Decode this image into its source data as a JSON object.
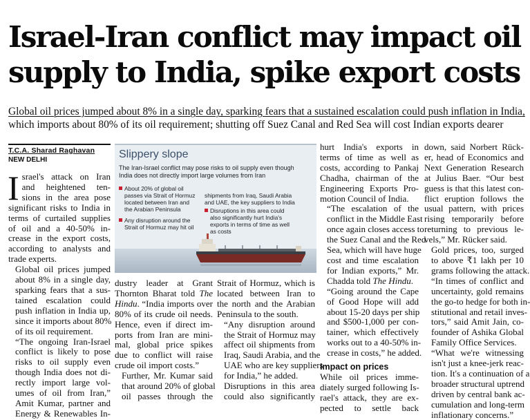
{
  "headline": {
    "line1": "Israel-Iran conflict may impact oil",
    "line2": "supply to India, spike export costs"
  },
  "standfirst": {
    "line1": "Global oil prices jumped about 8% in a single day, sparking fears that a sustained escalation could push inflation in India,",
    "line2": "which imports about 80% of its oil requirement; shutting off Suez Canal and Red Sea will cost Indian exports dearer"
  },
  "byline": {
    "author": "T.C.A. Sharad Raghavan",
    "dateline": "NEW DELHI"
  },
  "graphic": {
    "title": "Slippery slope",
    "intro_l1": "The Iran-Israel conflict may pose risks to oil supply even though",
    "intro_l2": "India does not directly import large volumes from Iran",
    "b1_l1": "About 20% of global oil",
    "b1_l2": "passes via Strait of Hormuz",
    "b1_l3": "located between Iran and",
    "b1_l4": "the Arabian Peninsula",
    "b2_l1": "Any disruption around the",
    "b2_l2": "Strait of Hormuz may hit oil",
    "b3_l1": "shipments from Iraq, Saudi Arabia",
    "b3_l2": "and UAE, the key suppliers to India",
    "b4_l1": "Disruptions in this area could",
    "b4_l2": "also significantly hurt India's",
    "b4_l3": "exports in terms of time as well",
    "b4_l4": "as costs"
  },
  "col1": {
    "drop": "I",
    "d1": "srael's attack on Iran",
    "d2": "and heightened ten-",
    "d3": "sions in the area pose",
    "l4": "significant risks to India in",
    "l5": "terms of curtailed supplies",
    "l6": "of oil and a 40-50% in-",
    "l7": "crease in the export costs,",
    "l8": "according to analysts and",
    "l9": "trade experts.",
    "l10": "Global oil prices jumped",
    "l11": "about 8% in a single day,",
    "l12": "sparking fears that a sus-",
    "l13": "tained escalation could",
    "l14": "push inflation in India up,",
    "l15": "since it imports about 80%",
    "l16": "of its oil requirement.",
    "l17": "“The ongoing Iran-Israel",
    "l18": "conflict is likely to pose",
    "l19": "risks to oil supply even",
    "l20": "though India does not di-",
    "l21": "rectly import large vol-",
    "l22": "umes of oil from Iran,”",
    "l23": "Amit Kumar, partner and",
    "l24": "Energy & Renewables In-"
  },
  "col2": {
    "l1": "dustry leader at Grant",
    "l2a": "Thornton Bharat told ",
    "l2b": "The",
    "l3a": "Hindu",
    "l3b": ". “India imports over",
    "l4": "80% of its crude oil needs.",
    "l5": "Hence, even if direct im-",
    "l6": "ports from Iran are mini-",
    "l7": "mal, global price spikes",
    "l8": "due to conflict will raise",
    "l9": "crude oil import costs.”",
    "l10": "Further, Mr. Kumar said",
    "l11": "that around 20% of global",
    "l12": "oil passes through the"
  },
  "col3": {
    "l1": "Strait of Hormuz, which is",
    "l2": "located between Iran to",
    "l3": "the north and the Arabian",
    "l4": "Peninsula to the south.",
    "l5": "“Any disruption around",
    "l6": "the Strait of Hormuz may",
    "l7": "affect oil shipments from",
    "l8": "Iraq, Saudi Arabia, and the",
    "l9": "UAE who are key suppliers",
    "l10": "for India,” he added.",
    "l11": "Disruptions in this area",
    "l12": "could also significantly"
  },
  "col4": {
    "l1": "hurt India's exports in",
    "l2": "terms of time as well as",
    "l3": "costs, according to Pankaj",
    "l4": "Chadha, chairman of the",
    "l5": "Engineering Exports Pro-",
    "l6": "motion Council of India.",
    "l7": "“The escalation of the",
    "l8": "conflict in the Middle East",
    "l9": "once again closes access to",
    "l10": "the Suez Canal and the Red",
    "l11": "Sea, which will have huge",
    "l12": "cost and time escalation",
    "l13": "for Indian exports,” Mr.",
    "l14a": "Chadda told ",
    "l14b": "The Hindu",
    "l14c": ".",
    "l15": "“Going around the Cape",
    "l16": "of Good Hope will add",
    "l17": "about 15-20 days per ship",
    "l18": "and $500-1,000 per con-",
    "l19": "tainer, which effectively",
    "l20": "works out to a 40-50% in-",
    "l21": "crease in costs,” he added.",
    "subhead": "Impact on prices",
    "l22": "While oil prices imme-",
    "l23": "diately surged following Is-",
    "l24": "rael's attack, they are ex-",
    "l25": "pected to settle back"
  },
  "col5": {
    "l1": "down, said Norbert Rück-",
    "l2": "er, head of Economics and",
    "l3": "Next Generation Research",
    "l4": "at Julius Baer. “Our best",
    "l5": "guess is that this latest con-",
    "l6": "flict eruption follows the",
    "l7": "usual pattern, with prices",
    "l8": "rising temporarily before",
    "l9": "returning to previous le-",
    "l10": "vels,” Mr. Rücker said.",
    "l11": "Gold prices, too, surged",
    "l12": "to above ₹1 lakh per 10",
    "l13": "grams following the attack.",
    "l14": "“In times of conflict and",
    "l15": "uncertainty, gold remains",
    "l16": "the go-to hedge for both in-",
    "l17": "stitutional and retail inves-",
    "l18": "tors,” said Amit Jain, co-",
    "l19": "founder of Ashika Global",
    "l20": "Family Office Services.",
    "l21": "“What we're witnessing",
    "l22": "isn't just a knee-jerk reac-",
    "l23": "tion. It's a continuation of a",
    "l24": "broader structural uptrend",
    "l25": "driven by central bank ac-",
    "l26": "cumulation and long-term",
    "l27": "inflationary concerns.”"
  },
  "colors": {
    "graphic_bg": "#e9eef3",
    "graphic_title": "#3b5068",
    "bullet_red": "#c8202f"
  }
}
